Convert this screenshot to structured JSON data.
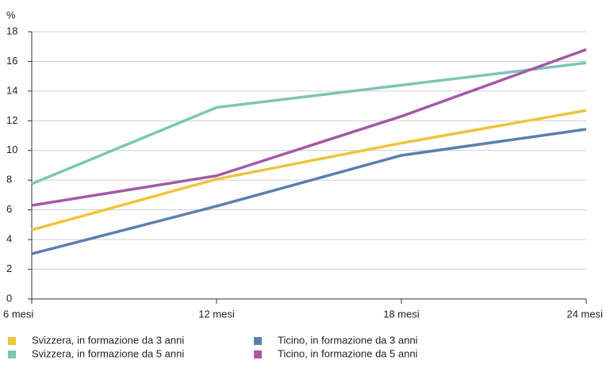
{
  "chart_data": {
    "type": "line",
    "y_label": "%",
    "categories": [
      "6 mesi",
      "12 mesi",
      "18 mesi",
      "24 mesi"
    ],
    "series": [
      {
        "name": "Svizzera, in formazione da 3 anni",
        "color": "#f0c43c",
        "values": [
          4.65,
          8.07,
          10.5,
          12.7
        ]
      },
      {
        "name": "Ticino, in formazione da 3 anni",
        "color": "#5b7fae",
        "values": [
          3.04,
          6.25,
          9.67,
          11.43
        ]
      },
      {
        "name": "Svizzera, in formazione da 5 anni",
        "color": "#7cc5b8",
        "values": [
          7.75,
          12.9,
          14.4,
          15.9
        ]
      },
      {
        "name": "Ticino, in formazione da 5 anni",
        "color": "#a25aa5",
        "values": [
          6.3,
          8.3,
          12.3,
          16.8
        ]
      }
    ],
    "ylim": [
      0,
      18
    ],
    "yticks": [
      0,
      2,
      4,
      6,
      8,
      10,
      12,
      14,
      16,
      18
    ],
    "grid": true
  }
}
